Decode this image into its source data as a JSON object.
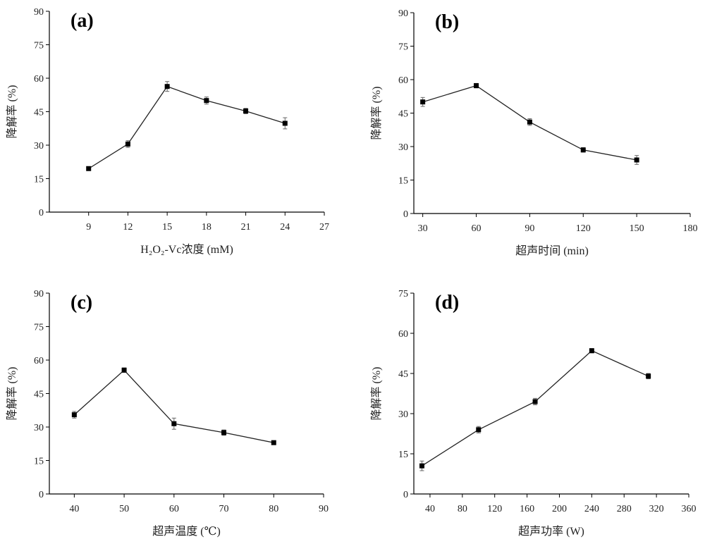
{
  "chart_data": [
    {
      "type": "line",
      "panel_label": "(a)",
      "xlabel": "H₂O₂-Vc浓度 (mM)",
      "ylabel": "降解率 (%)",
      "xlim": [
        6,
        27
      ],
      "ylim": [
        0,
        90
      ],
      "xticks": [
        9,
        12,
        15,
        18,
        21,
        24,
        27
      ],
      "yticks": [
        0,
        15,
        30,
        45,
        60,
        75,
        90
      ],
      "x": [
        9,
        12,
        15,
        18,
        21,
        24
      ],
      "series": [
        {
          "values": [
            19.5,
            30.5,
            56.3,
            50.0,
            45.3,
            39.8
          ],
          "errors": [
            0.8,
            1.5,
            2.2,
            1.6,
            1.2,
            2.5
          ]
        }
      ],
      "color": "#000000"
    },
    {
      "type": "line",
      "panel_label": "(b)",
      "xlabel": "超声时间 (min)",
      "ylabel": "降解率 (%)",
      "xlim": [
        25,
        180
      ],
      "ylim": [
        0,
        90
      ],
      "xticks": [
        30,
        60,
        90,
        120,
        150,
        180
      ],
      "yticks": [
        0,
        15,
        30,
        45,
        60,
        75,
        90
      ],
      "x": [
        30,
        60,
        90,
        120,
        150
      ],
      "series": [
        {
          "values": [
            50.0,
            57.3,
            41.0,
            28.5,
            24.0
          ],
          "errors": [
            2.0,
            1.0,
            1.5,
            1.0,
            2.0
          ]
        }
      ],
      "color": "#000000"
    },
    {
      "type": "line",
      "panel_label": "(c)",
      "xlabel": "超声温度 (℃)",
      "ylabel": "降解率 (%)",
      "xlim": [
        35,
        90
      ],
      "ylim": [
        0,
        90
      ],
      "xticks": [
        40,
        50,
        60,
        70,
        80,
        90
      ],
      "yticks": [
        0,
        15,
        30,
        45,
        60,
        75,
        90
      ],
      "x": [
        40,
        50,
        60,
        70,
        80
      ],
      "series": [
        {
          "values": [
            35.5,
            55.5,
            31.5,
            27.5,
            23.0
          ],
          "errors": [
            1.5,
            1.0,
            2.5,
            1.2,
            0.8
          ]
        }
      ],
      "color": "#000000"
    },
    {
      "type": "line",
      "panel_label": "(d)",
      "xlabel": "超声功率 (W)",
      "ylabel": "降解率 (%)",
      "xlim": [
        20,
        360
      ],
      "ylim": [
        0,
        75
      ],
      "xticks": [
        40,
        80,
        120,
        160,
        200,
        240,
        280,
        320,
        360
      ],
      "yticks": [
        0,
        15,
        30,
        45,
        60,
        75
      ],
      "x": [
        30,
        100,
        170,
        240,
        310
      ],
      "series": [
        {
          "values": [
            10.5,
            24.0,
            34.5,
            53.5,
            44.0
          ],
          "errors": [
            1.8,
            1.2,
            1.2,
            0.8,
            1.0
          ]
        }
      ],
      "color": "#000000"
    }
  ]
}
